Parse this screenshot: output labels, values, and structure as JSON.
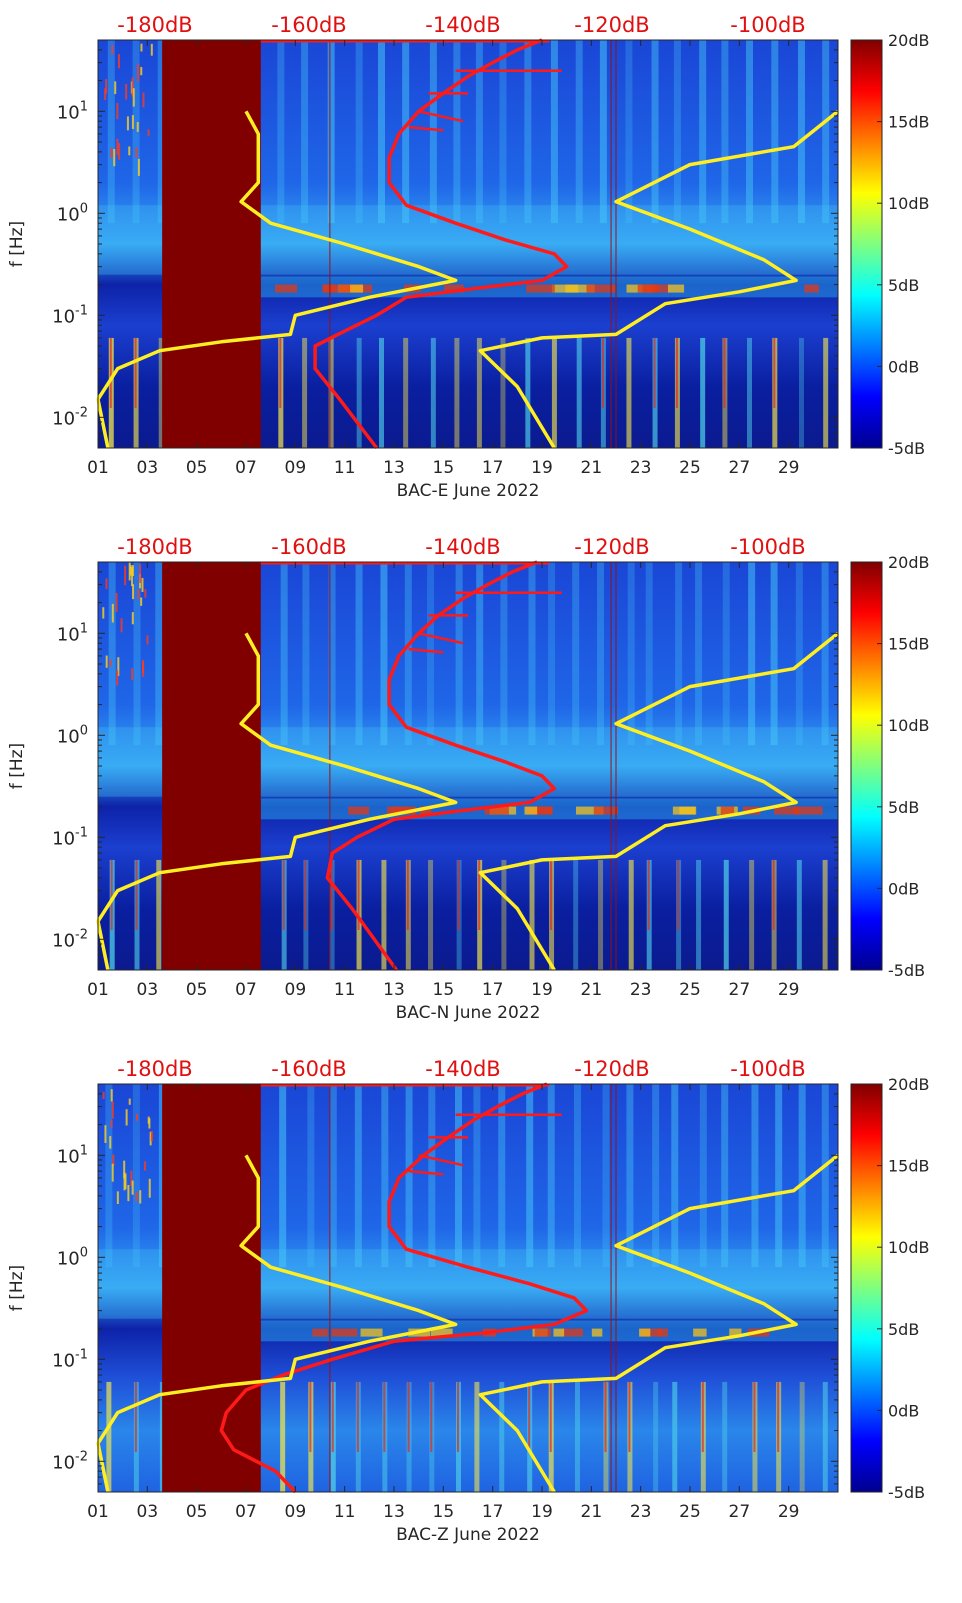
{
  "colors": {
    "low": "#00008f",
    "mid": "#27a7ff",
    "high": "#ffea00",
    "max": "#800000",
    "noise_curve": "#ff1a1a",
    "model_curve": "#ffee22",
    "top_label": "#e11010"
  },
  "chart_data": [
    {
      "type": "heatmap",
      "title": "",
      "xlabel": "BAC-E June 2022",
      "ylabel": "f [Hz]",
      "x_ticks": [
        "01",
        "03",
        "05",
        "07",
        "09",
        "11",
        "13",
        "15",
        "17",
        "19",
        "21",
        "23",
        "25",
        "27",
        "29"
      ],
      "xlim": [
        1,
        31
      ],
      "ylim": [
        0.005,
        50
      ],
      "y_ticks": [
        {
          "base": "10",
          "exp": "1",
          "value": 10
        },
        {
          "base": "10",
          "exp": "0",
          "value": 1
        },
        {
          "base": "10",
          "exp": "-1",
          "value": 0.1
        },
        {
          "base": "10",
          "exp": "-2",
          "value": 0.01
        }
      ],
      "top_axis_labels": [
        "-180dB",
        "-160dB",
        "-140dB",
        "-120dB",
        "-100dB"
      ],
      "colorbar_labels": [
        "20dB",
        "15dB",
        "10dB",
        "5dB",
        "0dB",
        "-5dB"
      ],
      "clim": [
        -5,
        20
      ],
      "gap_days": [
        3.6,
        7.6
      ],
      "series": [
        {
          "name": "red noise curve",
          "day_points": [
            [
              19.0,
              50
            ],
            [
              18.0,
              40
            ],
            [
              17.0,
              30
            ],
            [
              16.0,
              22
            ],
            [
              15.0,
              15
            ],
            [
              14.0,
              10
            ],
            [
              13.2,
              6
            ],
            [
              12.8,
              3.5
            ],
            [
              12.8,
              2
            ],
            [
              13.5,
              1.2
            ],
            [
              15.5,
              0.8
            ],
            [
              17.5,
              0.55
            ],
            [
              19.5,
              0.4
            ],
            [
              20.0,
              0.3
            ],
            [
              19.0,
              0.22
            ],
            [
              16.0,
              0.18
            ],
            [
              13.5,
              0.15
            ],
            [
              12.3,
              0.1
            ],
            [
              11.0,
              0.07
            ],
            [
              9.8,
              0.05
            ],
            [
              9.8,
              0.03
            ],
            [
              10.8,
              0.015
            ],
            [
              12.3,
              0.005
            ]
          ]
        },
        {
          "name": "yellow model curve low",
          "day_points": [
            [
              7.0,
              10
            ],
            [
              7.5,
              6
            ],
            [
              7.5,
              2
            ],
            [
              6.8,
              1.3
            ],
            [
              8.0,
              0.8
            ],
            [
              11.0,
              0.5
            ],
            [
              14.0,
              0.3
            ],
            [
              15.5,
              0.22
            ],
            [
              12.0,
              0.15
            ],
            [
              9.0,
              0.1
            ],
            [
              8.8,
              0.065
            ],
            [
              6.0,
              0.055
            ],
            [
              3.5,
              0.045
            ],
            [
              1.8,
              0.03
            ],
            [
              1.0,
              0.015
            ],
            [
              1.4,
              0.005
            ]
          ]
        },
        {
          "name": "yellow model curve high",
          "day_points": [
            [
              31.0,
              10
            ],
            [
              29.2,
              4.5
            ],
            [
              25.0,
              3
            ],
            [
              22.0,
              1.3
            ],
            [
              25.0,
              0.7
            ],
            [
              28.0,
              0.35
            ],
            [
              29.3,
              0.22
            ],
            [
              27.0,
              0.17
            ],
            [
              24.0,
              0.13
            ],
            [
              22.0,
              0.065
            ],
            [
              19.0,
              0.06
            ],
            [
              16.5,
              0.045
            ],
            [
              18.0,
              0.02
            ],
            [
              19.5,
              0.005
            ]
          ]
        }
      ]
    },
    {
      "type": "heatmap",
      "title": "",
      "xlabel": "BAC-N June 2022",
      "ylabel": "f [Hz]",
      "x_ticks": [
        "01",
        "03",
        "05",
        "07",
        "09",
        "11",
        "13",
        "15",
        "17",
        "19",
        "21",
        "23",
        "25",
        "27",
        "29"
      ],
      "xlim": [
        1,
        31
      ],
      "ylim": [
        0.005,
        50
      ],
      "y_ticks": [
        {
          "base": "10",
          "exp": "1",
          "value": 10
        },
        {
          "base": "10",
          "exp": "0",
          "value": 1
        },
        {
          "base": "10",
          "exp": "-1",
          "value": 0.1
        },
        {
          "base": "10",
          "exp": "-2",
          "value": 0.01
        }
      ],
      "top_axis_labels": [
        "-180dB",
        "-160dB",
        "-140dB",
        "-120dB",
        "-100dB"
      ],
      "colorbar_labels": [
        "20dB",
        "15dB",
        "10dB",
        "5dB",
        "0dB",
        "-5dB"
      ],
      "clim": [
        -5,
        20
      ],
      "gap_days": [
        3.6,
        7.6
      ],
      "series": [
        {
          "name": "red noise curve",
          "day_points": [
            [
              18.8,
              50
            ],
            [
              17.8,
              40
            ],
            [
              16.8,
              30
            ],
            [
              15.8,
              22
            ],
            [
              14.8,
              15
            ],
            [
              14.0,
              10
            ],
            [
              13.2,
              6
            ],
            [
              12.8,
              3.5
            ],
            [
              12.8,
              2
            ],
            [
              13.5,
              1.2
            ],
            [
              15.5,
              0.8
            ],
            [
              17.5,
              0.55
            ],
            [
              19.0,
              0.4
            ],
            [
              19.5,
              0.3
            ],
            [
              18.5,
              0.22
            ],
            [
              15.5,
              0.18
            ],
            [
              13.0,
              0.15
            ],
            [
              11.5,
              0.1
            ],
            [
              10.5,
              0.07
            ],
            [
              10.3,
              0.04
            ],
            [
              11.3,
              0.02
            ],
            [
              13.1,
              0.005
            ]
          ]
        },
        {
          "name": "yellow model curve low",
          "day_points": [
            [
              7.0,
              10
            ],
            [
              7.5,
              6
            ],
            [
              7.5,
              2
            ],
            [
              6.8,
              1.3
            ],
            [
              8.0,
              0.8
            ],
            [
              11.0,
              0.5
            ],
            [
              14.0,
              0.3
            ],
            [
              15.5,
              0.22
            ],
            [
              12.0,
              0.15
            ],
            [
              9.0,
              0.1
            ],
            [
              8.8,
              0.065
            ],
            [
              6.0,
              0.055
            ],
            [
              3.5,
              0.045
            ],
            [
              1.8,
              0.03
            ],
            [
              1.0,
              0.015
            ],
            [
              1.4,
              0.005
            ]
          ]
        },
        {
          "name": "yellow model curve high",
          "day_points": [
            [
              31.0,
              10
            ],
            [
              29.2,
              4.5
            ],
            [
              25.0,
              3
            ],
            [
              22.0,
              1.3
            ],
            [
              25.0,
              0.7
            ],
            [
              28.0,
              0.35
            ],
            [
              29.3,
              0.22
            ],
            [
              27.0,
              0.17
            ],
            [
              24.0,
              0.13
            ],
            [
              22.0,
              0.065
            ],
            [
              19.0,
              0.06
            ],
            [
              16.5,
              0.045
            ],
            [
              18.0,
              0.02
            ],
            [
              19.5,
              0.005
            ]
          ]
        }
      ]
    },
    {
      "type": "heatmap",
      "title": "",
      "xlabel": "BAC-Z June 2022",
      "ylabel": "f [Hz]",
      "x_ticks": [
        "01",
        "03",
        "05",
        "07",
        "09",
        "11",
        "13",
        "15",
        "17",
        "19",
        "21",
        "23",
        "25",
        "27",
        "29"
      ],
      "xlim": [
        1,
        31
      ],
      "ylim": [
        0.005,
        50
      ],
      "y_ticks": [
        {
          "base": "10",
          "exp": "1",
          "value": 10
        },
        {
          "base": "10",
          "exp": "0",
          "value": 1
        },
        {
          "base": "10",
          "exp": "-1",
          "value": 0.1
        },
        {
          "base": "10",
          "exp": "-2",
          "value": 0.01
        }
      ],
      "top_axis_labels": [
        "-180dB",
        "-160dB",
        "-140dB",
        "-120dB",
        "-100dB"
      ],
      "colorbar_labels": [
        "20dB",
        "15dB",
        "10dB",
        "5dB",
        "0dB",
        "-5dB"
      ],
      "clim": [
        -5,
        20
      ],
      "gap_days": [
        3.6,
        7.6
      ],
      "series": [
        {
          "name": "red noise curve",
          "day_points": [
            [
              19.2,
              50
            ],
            [
              18.2,
              40
            ],
            [
              17.2,
              30
            ],
            [
              16.2,
              22
            ],
            [
              15.2,
              15
            ],
            [
              14.2,
              10
            ],
            [
              13.2,
              6
            ],
            [
              12.8,
              3.5
            ],
            [
              12.8,
              2
            ],
            [
              13.5,
              1.2
            ],
            [
              16.0,
              0.8
            ],
            [
              18.5,
              0.55
            ],
            [
              20.3,
              0.4
            ],
            [
              20.8,
              0.3
            ],
            [
              19.5,
              0.22
            ],
            [
              16.5,
              0.18
            ],
            [
              13.0,
              0.15
            ],
            [
              10.5,
              0.1
            ],
            [
              8.5,
              0.07
            ],
            [
              7.0,
              0.05
            ],
            [
              6.2,
              0.03
            ],
            [
              6.0,
              0.02
            ],
            [
              6.5,
              0.013
            ],
            [
              8.2,
              0.008
            ],
            [
              9.0,
              0.005
            ]
          ]
        },
        {
          "name": "yellow model curve low",
          "day_points": [
            [
              7.0,
              10
            ],
            [
              7.5,
              6
            ],
            [
              7.5,
              2
            ],
            [
              6.8,
              1.3
            ],
            [
              8.0,
              0.8
            ],
            [
              11.0,
              0.5
            ],
            [
              14.0,
              0.3
            ],
            [
              15.5,
              0.22
            ],
            [
              12.0,
              0.15
            ],
            [
              9.0,
              0.1
            ],
            [
              8.8,
              0.065
            ],
            [
              6.0,
              0.055
            ],
            [
              3.5,
              0.045
            ],
            [
              1.8,
              0.03
            ],
            [
              1.0,
              0.015
            ],
            [
              1.4,
              0.005
            ]
          ]
        },
        {
          "name": "yellow model curve high",
          "day_points": [
            [
              31.0,
              10
            ],
            [
              29.2,
              4.5
            ],
            [
              25.0,
              3
            ],
            [
              22.0,
              1.3
            ],
            [
              25.0,
              0.7
            ],
            [
              28.0,
              0.35
            ],
            [
              29.3,
              0.22
            ],
            [
              27.0,
              0.17
            ],
            [
              24.0,
              0.13
            ],
            [
              22.0,
              0.065
            ],
            [
              19.0,
              0.06
            ],
            [
              16.5,
              0.045
            ],
            [
              18.0,
              0.02
            ],
            [
              19.5,
              0.005
            ]
          ]
        }
      ]
    }
  ]
}
